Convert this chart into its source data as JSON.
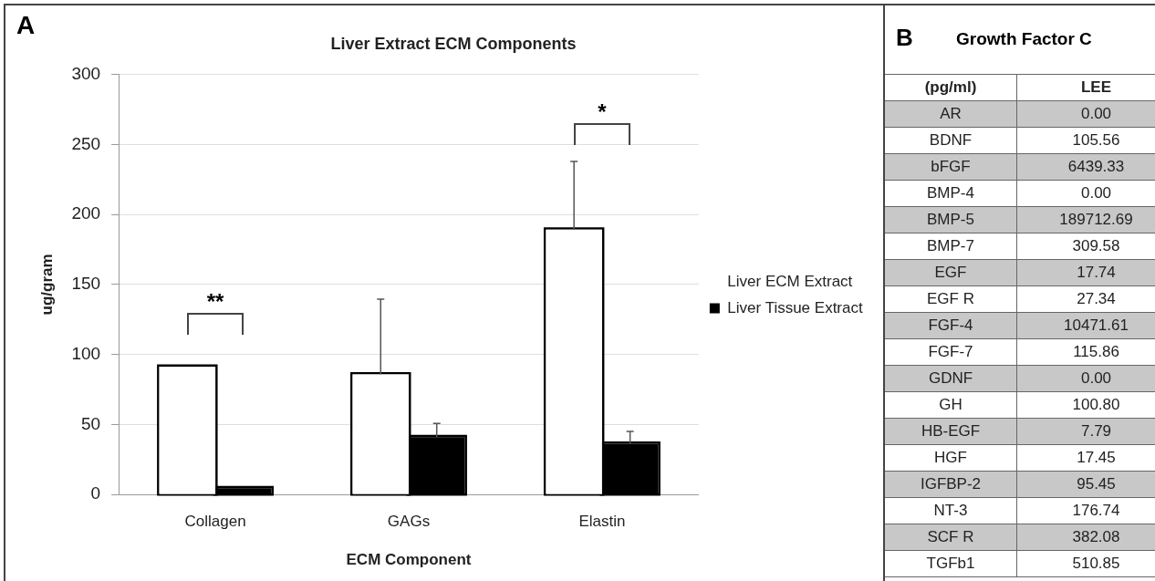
{
  "chart_data": [
    {
      "type": "bar",
      "title": "Liver Extract ECM Components",
      "xlabel": "ECM Component",
      "ylabel": "ug/gram",
      "categories": [
        "Collagen",
        "GAGs",
        "Elastin"
      ],
      "series": [
        {
          "name": "Liver ECM Extract",
          "color": "#ffffff",
          "values": [
            91.3,
            85.8,
            189.2
          ],
          "errors": [
            null,
            [
              85.8,
              139.5
            ],
            [
              189.2,
              237.8
            ]
          ]
        },
        {
          "name": "Liver Tissue Extract",
          "color": "#000000",
          "values": [
            4.5,
            41,
            36.3
          ],
          "errors": [
            null,
            [
              41,
              50.8
            ],
            [
              36.3,
              45.1
            ]
          ]
        }
      ],
      "ylim": [
        0,
        300
      ],
      "yticks": [
        0,
        50,
        100,
        150,
        200,
        250,
        300
      ],
      "grid": "y",
      "legend": "right",
      "annotations": [
        "A",
        "**",
        "*"
      ]
    },
    {
      "type": "other",
      "title": "Growth Factor C",
      "ylabel": "(pg/ml)",
      "categories": [
        "AR",
        "BDNF",
        "bFGF",
        "BMP-4",
        "BMP-5",
        "BMP-7",
        "EGF",
        "EGF R",
        "FGF-4",
        "FGF-7",
        "GDNF",
        "GH",
        "HB-EGF",
        "HGF",
        "IGFBP-2",
        "NT-3",
        "SCF R",
        "TGFb1"
      ],
      "series": [
        {
          "name": "LEE",
          "values": [
            0,
            105.56,
            6439.33,
            0,
            189712.69,
            309.58,
            17.74,
            27.34,
            10471.61,
            115.86,
            0,
            100.8,
            7.79,
            17.45,
            95.45,
            176.74,
            382.08,
            510.85
          ],
          "value_labels": [
            "0.00",
            "105.56",
            "6439.33",
            "0.00",
            "189712.69",
            "309.58",
            "17.74",
            "27.34",
            "10471.61",
            "115.86",
            "0.00",
            "100.80",
            "7.79",
            "17.45",
            "95.45",
            "176.74",
            "382.08",
            "510.85"
          ]
        }
      ],
      "annotations": [
        "B"
      ]
    }
  ]
}
